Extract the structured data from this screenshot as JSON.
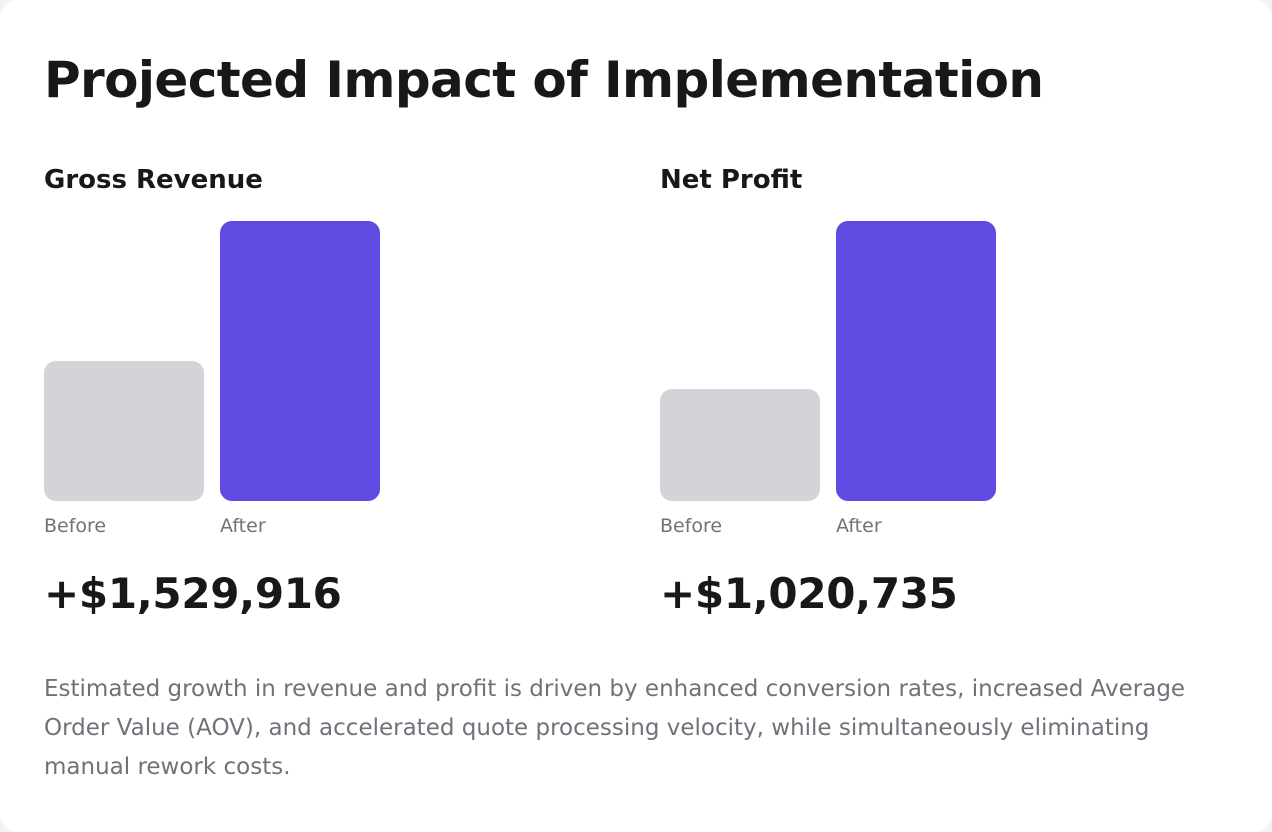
{
  "page": {
    "title": "Projected Impact of Implementation",
    "footnote": "Estimated growth in revenue and profit is driven by enhanced conversion rates, increased Average Order Value (AOV), and accelerated quote processing velocity, while simultaneously eliminating manual rework costs."
  },
  "colors": {
    "before": "#d4d4d8",
    "after": "#5f4be2",
    "text": "#18181b",
    "muted": "#71717a"
  },
  "chart_data": [
    {
      "type": "bar",
      "title": "Gross Revenue",
      "categories": [
        "Before",
        "After"
      ],
      "values": [
        0.5,
        1.0
      ],
      "value_note": "relative heights only; no axis printed",
      "delta_label": "+$1,529,916"
    },
    {
      "type": "bar",
      "title": "Net Profit",
      "categories": [
        "Before",
        "After"
      ],
      "values": [
        0.4,
        1.0
      ],
      "delta_label": "+$1,020,735"
    }
  ]
}
